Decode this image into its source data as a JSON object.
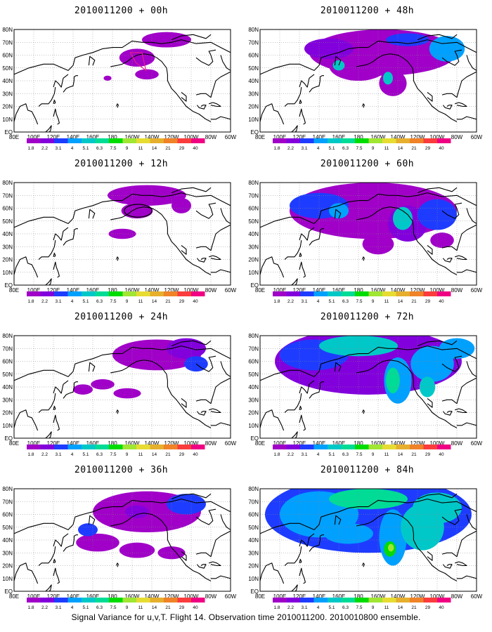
{
  "figure_caption": "Signal Variance for u,v,T. Flight 14. Observation time 2010011200. 2010010800 ensemble.",
  "latitude_ticks": [
    "80N",
    "70N",
    "60N",
    "50N",
    "40N",
    "30N",
    "20N",
    "10N",
    "EQ"
  ],
  "longitude_ticks": [
    "80E",
    "100E",
    "120E",
    "140E",
    "160E",
    "180",
    "160W",
    "140W",
    "120W",
    "100W",
    "80W",
    "60W"
  ],
  "colorbar": {
    "levels": [
      "1.8",
      "2.2",
      "3.1",
      "4",
      "5.1",
      "6.3",
      "7.5",
      "9",
      "11",
      "14",
      "21",
      "29",
      "40"
    ],
    "colors": [
      "#a000c8",
      "#8200dc",
      "#1e3cff",
      "#00a0ff",
      "#00c8c8",
      "#00dc96",
      "#00dc00",
      "#a0e632",
      "#e6dc32",
      "#e6af2d",
      "#f08228",
      "#fa3c3c",
      "#f00082"
    ]
  },
  "panels": [
    {
      "title": "2010011200 + 00h",
      "intensity": 0
    },
    {
      "title": "2010011200 + 12h",
      "intensity": 1
    },
    {
      "title": "2010011200 + 24h",
      "intensity": 2
    },
    {
      "title": "2010011200 + 36h",
      "intensity": 3
    },
    {
      "title": "2010011200 + 48h",
      "intensity": 4
    },
    {
      "title": "2010011200 + 60h",
      "intensity": 5
    },
    {
      "title": "2010011200 + 72h",
      "intensity": 6
    },
    {
      "title": "2010011200 + 84h",
      "intensity": 7
    }
  ],
  "chart_data": {
    "type": "heatmap",
    "title": "Signal Variance for u,v,T. Flight 14. Observation time 2010011200. 2010010800 ensemble.",
    "panels": [
      "2010011200 + 00h",
      "2010011200 + 12h",
      "2010011200 + 24h",
      "2010011200 + 36h",
      "2010011200 + 48h",
      "2010011200 + 60h",
      "2010011200 + 72h",
      "2010011200 + 84h"
    ],
    "contour_levels": [
      1.8,
      2.2,
      3.1,
      4,
      5.1,
      6.3,
      7.5,
      9,
      11,
      14,
      21,
      29,
      40
    ],
    "x_range": [
      "80E",
      "60W"
    ],
    "y_range": [
      "EQ",
      "80N"
    ],
    "grid": true
  }
}
